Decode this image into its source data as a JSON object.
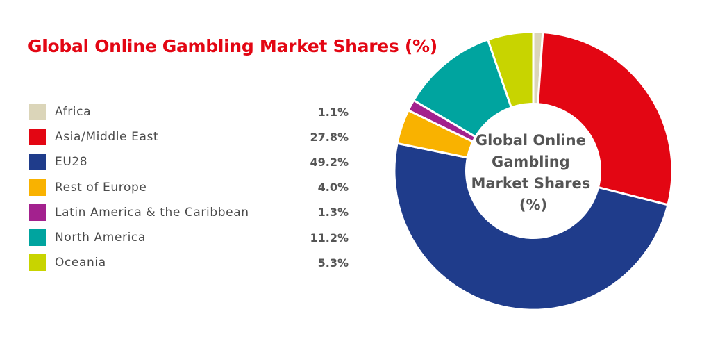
{
  "chart_data": {
    "type": "pie",
    "title": "Global Online Gambling Market Shares (%)",
    "center_label": [
      "Global Online",
      "Gambling",
      "Market Shares",
      "(%)"
    ],
    "slices": [
      {
        "label": "Africa",
        "value": 1.1,
        "display": "1.1%",
        "color": "#dbd5b9"
      },
      {
        "label": "Asia/Middle East",
        "value": 27.8,
        "display": "27.8%",
        "color": "#e30613"
      },
      {
        "label": "EU28",
        "value": 49.2,
        "display": "49.2%",
        "color": "#1f3c8b"
      },
      {
        "label": "Rest of Europe",
        "value": 4.0,
        "display": "4.0%",
        "color": "#f9b200"
      },
      {
        "label": "Latin America & the Caribbean",
        "value": 1.3,
        "display": "1.3%",
        "color": "#a3218e"
      },
      {
        "label": "North America",
        "value": 11.2,
        "display": "11.2%",
        "color": "#00a49f"
      },
      {
        "label": "Oceania",
        "value": 5.3,
        "display": "5.3%",
        "color": "#c8d400"
      }
    ],
    "donut": true,
    "legend_position": "left",
    "start": "top",
    "direction": "clockwise"
  }
}
